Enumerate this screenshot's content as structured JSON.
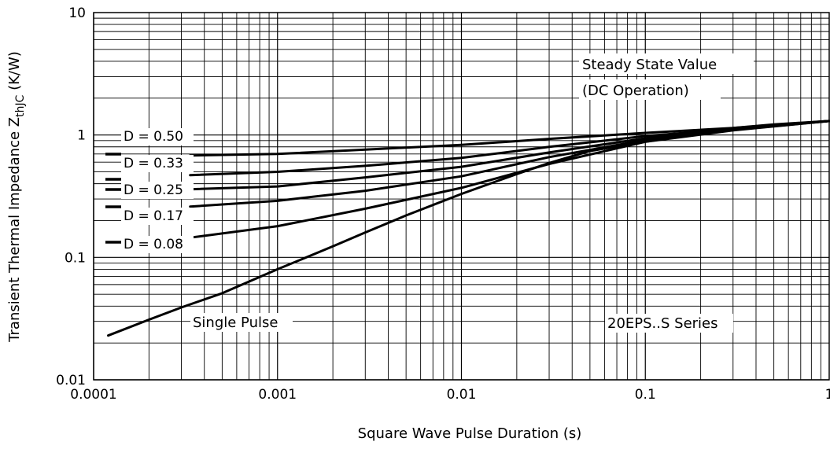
{
  "chart_data": {
    "type": "line",
    "x_scale": "log",
    "y_scale": "log",
    "xlim": [
      0.0001,
      1
    ],
    "ylim": [
      0.01,
      10
    ],
    "grid": true,
    "xlabel": "Square Wave Pulse Duration (s)",
    "ylabel": "Transient Thermal Impedance Z",
    "ylabel_sub": "thJC",
    "ylabel_unit": " (K/W)",
    "x_ticks": [
      {
        "value": 0.0001,
        "label": "0.0001"
      },
      {
        "value": 0.001,
        "label": "0.001"
      },
      {
        "value": 0.01,
        "label": "0.01"
      },
      {
        "value": 0.1,
        "label": "0.1"
      },
      {
        "value": 1,
        "label": "1"
      }
    ],
    "y_ticks": [
      {
        "value": 10,
        "label": "10"
      },
      {
        "value": 1,
        "label": "1"
      },
      {
        "value": 0.1,
        "label": "0.1"
      },
      {
        "value": 0.01,
        "label": "0.01"
      }
    ],
    "annotations": {
      "steady_state_1": "Steady State Value",
      "steady_state_2": "(DC Operation)",
      "single_pulse": "Single Pulse",
      "series_name": "20EPS..S Series"
    },
    "legend": [
      "D = 0.50",
      "D = 0.33",
      "D = 0.25",
      "D = 0.17",
      "D = 0.08"
    ],
    "series": [
      {
        "name": "D = 0.50",
        "x": [
          0.000335,
          0.001,
          0.003,
          0.01,
          0.03,
          0.1,
          0.3,
          1
        ],
        "y": [
          0.68,
          0.7,
          0.76,
          0.83,
          0.93,
          1.04,
          1.14,
          1.3
        ]
      },
      {
        "name": "D = 0.33",
        "x": [
          0.000335,
          0.001,
          0.003,
          0.01,
          0.03,
          0.1,
          0.3,
          1
        ],
        "y": [
          0.47,
          0.5,
          0.56,
          0.65,
          0.8,
          0.98,
          1.12,
          1.3
        ]
      },
      {
        "name": "D = 0.25",
        "x": [
          0.000335,
          0.001,
          0.003,
          0.01,
          0.03,
          0.1,
          0.3,
          1
        ],
        "y": [
          0.36,
          0.38,
          0.45,
          0.55,
          0.72,
          0.94,
          1.11,
          1.3
        ]
      },
      {
        "name": "D = 0.17",
        "x": [
          0.000335,
          0.001,
          0.003,
          0.01,
          0.03,
          0.1,
          0.3,
          1
        ],
        "y": [
          0.26,
          0.29,
          0.35,
          0.46,
          0.66,
          0.91,
          1.1,
          1.3
        ]
      },
      {
        "name": "D = 0.08",
        "x": [
          0.000335,
          0.001,
          0.003,
          0.01,
          0.03,
          0.1,
          0.3,
          1
        ],
        "y": [
          0.145,
          0.18,
          0.25,
          0.37,
          0.58,
          0.88,
          1.09,
          1.3
        ]
      },
      {
        "name": "Single Pulse",
        "x": [
          0.00012,
          0.0002,
          0.0003,
          0.0005,
          0.001,
          0.002,
          0.003,
          0.005,
          0.01,
          0.02,
          0.03,
          0.05,
          0.1,
          0.2,
          0.3,
          0.5,
          1
        ],
        "y": [
          0.023,
          0.031,
          0.039,
          0.051,
          0.08,
          0.123,
          0.16,
          0.22,
          0.33,
          0.48,
          0.59,
          0.74,
          0.88,
          1.04,
          1.14,
          1.22,
          1.3
        ]
      }
    ]
  }
}
